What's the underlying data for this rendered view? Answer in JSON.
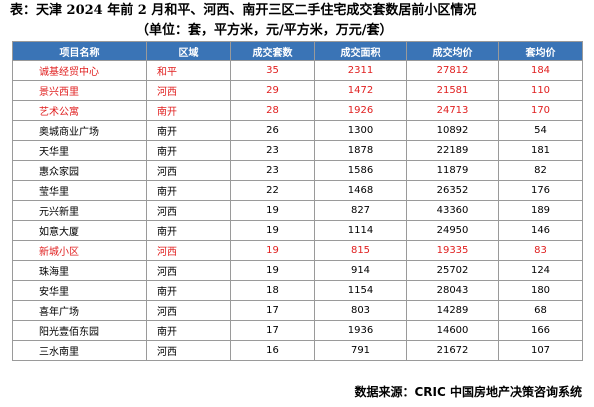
{
  "title": "表：天津 2024 年前 2 月和平、河西、南开三区二手住宅成交套数居前小区情况",
  "subtitle": "（单位：套，平方米，元/平方米，万元/套）",
  "columns": [
    "项目名称",
    "区域",
    "成交套数",
    "成交面积",
    "成交均价",
    "套均价"
  ],
  "highlight_color": "#e02020",
  "header_color": "#3a74b6",
  "rows": [
    {
      "name": "诚基经贸中心",
      "district": "和平",
      "units": "35",
      "area": "2311",
      "avg_price": "27812",
      "unit_price": "184",
      "highlight": true
    },
    {
      "name": "景兴西里",
      "district": "河西",
      "units": "29",
      "area": "1472",
      "avg_price": "21581",
      "unit_price": "110",
      "highlight": true
    },
    {
      "name": "艺术公寓",
      "district": "南开",
      "units": "28",
      "area": "1926",
      "avg_price": "24713",
      "unit_price": "170",
      "highlight": true
    },
    {
      "name": "奥城商业广场",
      "district": "南开",
      "units": "26",
      "area": "1300",
      "avg_price": "10892",
      "unit_price": "54",
      "highlight": false
    },
    {
      "name": "天华里",
      "district": "南开",
      "units": "23",
      "area": "1878",
      "avg_price": "22189",
      "unit_price": "181",
      "highlight": false
    },
    {
      "name": "惠众家园",
      "district": "河西",
      "units": "23",
      "area": "1586",
      "avg_price": "11879",
      "unit_price": "82",
      "highlight": false
    },
    {
      "name": "莹华里",
      "district": "南开",
      "units": "22",
      "area": "1468",
      "avg_price": "26352",
      "unit_price": "176",
      "highlight": false
    },
    {
      "name": "元兴新里",
      "district": "河西",
      "units": "19",
      "area": "827",
      "avg_price": "43360",
      "unit_price": "189",
      "highlight": false
    },
    {
      "name": "如意大厦",
      "district": "南开",
      "units": "19",
      "area": "1114",
      "avg_price": "24950",
      "unit_price": "146",
      "highlight": false
    },
    {
      "name": "新城小区",
      "district": "河西",
      "units": "19",
      "area": "815",
      "avg_price": "19335",
      "unit_price": "83",
      "highlight": true
    },
    {
      "name": "珠海里",
      "district": "河西",
      "units": "19",
      "area": "914",
      "avg_price": "25702",
      "unit_price": "124",
      "highlight": false
    },
    {
      "name": "安华里",
      "district": "南开",
      "units": "18",
      "area": "1154",
      "avg_price": "28043",
      "unit_price": "180",
      "highlight": false
    },
    {
      "name": "喜年广场",
      "district": "河西",
      "units": "17",
      "area": "803",
      "avg_price": "14289",
      "unit_price": "68",
      "highlight": false
    },
    {
      "name": "阳光壹佰东园",
      "district": "南开",
      "units": "17",
      "area": "1936",
      "avg_price": "14600",
      "unit_price": "166",
      "highlight": false
    },
    {
      "name": "三水南里",
      "district": "河西",
      "units": "16",
      "area": "791",
      "avg_price": "21672",
      "unit_price": "107",
      "highlight": false
    }
  ],
  "source": "数据来源：CRIC 中国房地产决策咨询系统"
}
